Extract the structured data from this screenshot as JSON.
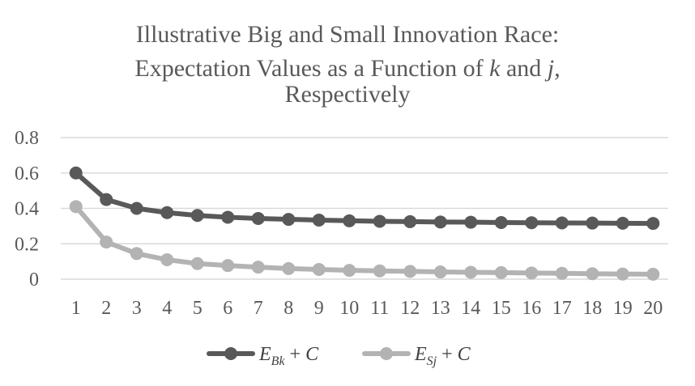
{
  "chart_data": {
    "type": "line",
    "title_lines": [
      "Illustrative Big and Small Innovation Race:",
      "Expectation Values as a Function of k and j,",
      "Respectively"
    ],
    "title_italic_words": [
      "k",
      "j,"
    ],
    "xlabel": "",
    "ylabel": "",
    "categories": [
      1,
      2,
      3,
      4,
      5,
      6,
      7,
      8,
      9,
      10,
      11,
      12,
      13,
      14,
      15,
      16,
      17,
      18,
      19,
      20
    ],
    "ylim": [
      0,
      0.8
    ],
    "yticks": [
      "0",
      "0.2",
      "0.4",
      "0.6",
      "0.8"
    ],
    "grid": true,
    "legend_position": "bottom",
    "series": [
      {
        "name": "E_Bk + C",
        "legend_main": "E",
        "legend_sub": "Bk",
        "legend_rest": " + C",
        "color": "#595959",
        "values": [
          0.6,
          0.45,
          0.4,
          0.376,
          0.36,
          0.35,
          0.343,
          0.338,
          0.334,
          0.33,
          0.327,
          0.325,
          0.323,
          0.322,
          0.32,
          0.319,
          0.318,
          0.317,
          0.316,
          0.315
        ]
      },
      {
        "name": "E_Sj + C",
        "legend_main": "E",
        "legend_sub": "Sj",
        "legend_rest": " + C",
        "color": "#b3b3b3",
        "values": [
          0.41,
          0.21,
          0.145,
          0.11,
          0.088,
          0.077,
          0.068,
          0.06,
          0.055,
          0.05,
          0.047,
          0.044,
          0.041,
          0.039,
          0.037,
          0.035,
          0.033,
          0.031,
          0.029,
          0.028
        ]
      }
    ]
  }
}
